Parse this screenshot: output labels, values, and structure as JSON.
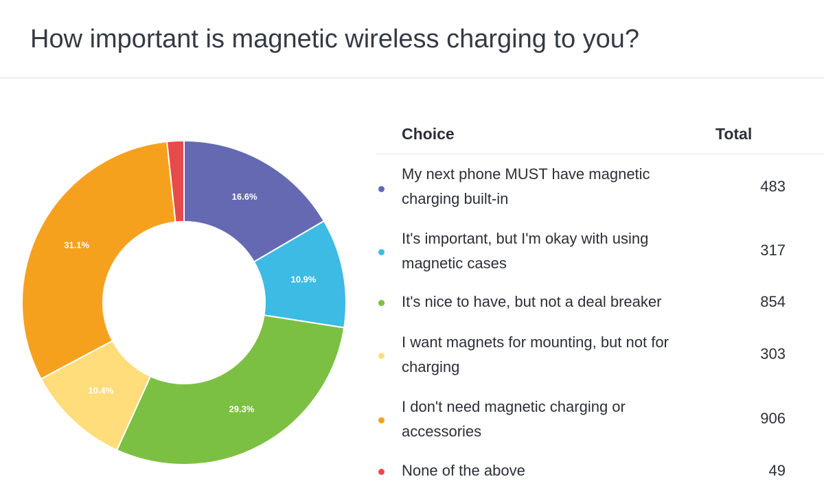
{
  "page": {
    "title": "How important is magnetic wireless charging to you?"
  },
  "table": {
    "choice_header": "Choice",
    "total_header": "Total"
  },
  "chart_data": {
    "type": "pie",
    "donut": true,
    "categories": [
      "My next phone MUST have magnetic charging built-in",
      "It's important, but I'm okay with using magnetic cases",
      "It's nice to have, but not a deal breaker",
      "I want magnets for mounting, but not for charging",
      "I don't need magnetic charging or accessories",
      "None of the above"
    ],
    "values": [
      483,
      317,
      854,
      303,
      906,
      49
    ],
    "percent_labels": [
      "16.6%",
      "10.9%",
      "29.3%",
      "10.4%",
      "31.1%",
      ""
    ],
    "colors": [
      "#6569b2",
      "#3dbbe5",
      "#7cc043",
      "#fedd7a",
      "#f5a11e",
      "#e84a4a"
    ],
    "legend_placement": "right"
  }
}
